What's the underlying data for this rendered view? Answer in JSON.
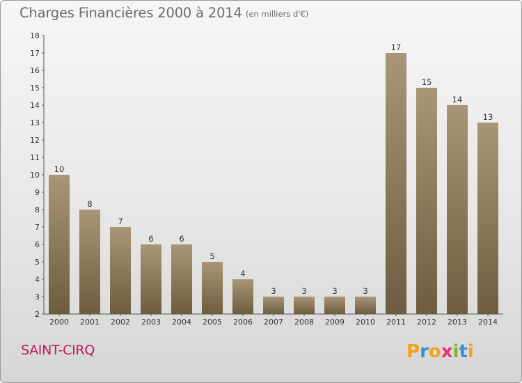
{
  "chart_data": {
    "type": "bar",
    "title": "Charges Financières 2000 à 2014",
    "subtitle": "(en milliers d'€)",
    "categories": [
      "2000",
      "2001",
      "2002",
      "2003",
      "2004",
      "2005",
      "2006",
      "2007",
      "2008",
      "2009",
      "2010",
      "2011",
      "2012",
      "2013",
      "2014"
    ],
    "values": [
      10,
      8,
      7,
      6,
      6,
      5,
      4,
      3,
      3,
      3,
      3,
      17,
      15,
      14,
      13
    ],
    "ylim": [
      2,
      18
    ],
    "yticks": [
      2,
      3,
      4,
      5,
      6,
      7,
      8,
      9,
      10,
      11,
      12,
      13,
      14,
      15,
      16,
      17,
      18
    ],
    "grid": false,
    "bar_color_top": "#a89676",
    "bar_color_bottom": "#6e5c40"
  },
  "commune": "SAINT-CIRQ",
  "logo": {
    "letters": [
      "P",
      "r",
      "o",
      "x",
      "i",
      "t",
      "i"
    ],
    "colors": [
      "#f5a31a",
      "#3a8fd6",
      "#f5a31a",
      "#e0347a",
      "#7cb82f",
      "#3a8fd6",
      "#f5a31a"
    ]
  }
}
